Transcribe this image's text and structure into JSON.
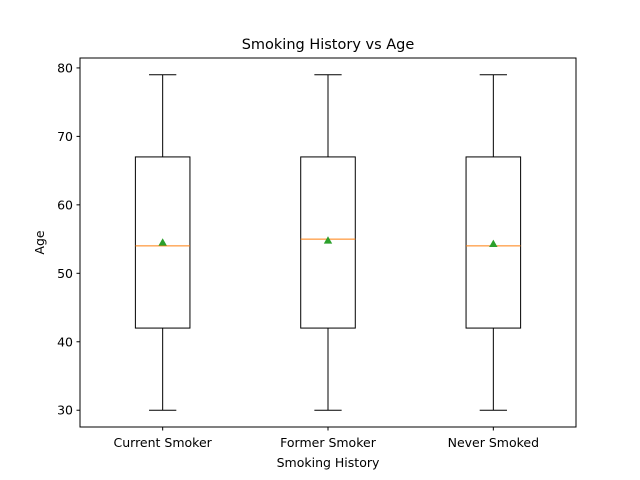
{
  "chart_data": {
    "type": "box",
    "title": "Smoking History vs Age",
    "xlabel": "Smoking History",
    "ylabel": "Age",
    "ylim": [
      27.55,
      81.45
    ],
    "yticks": [
      30,
      40,
      50,
      60,
      70,
      80
    ],
    "categories": [
      "Current Smoker",
      "Former Smoker",
      "Never Smoked"
    ],
    "boxes": [
      {
        "whisker_low": 30,
        "q1": 42,
        "median": 54,
        "q3": 67,
        "whisker_high": 79,
        "mean": 54.5
      },
      {
        "whisker_low": 30,
        "q1": 42,
        "median": 55,
        "q3": 67,
        "whisker_high": 79,
        "mean": 54.8
      },
      {
        "whisker_low": 30,
        "q1": 42,
        "median": 54,
        "q3": 67,
        "whisker_high": 79,
        "mean": 54.3
      }
    ],
    "grid": false,
    "colors": {
      "box": "#000000",
      "median": "#ff7f0e",
      "mean": "#2ca02c"
    }
  }
}
